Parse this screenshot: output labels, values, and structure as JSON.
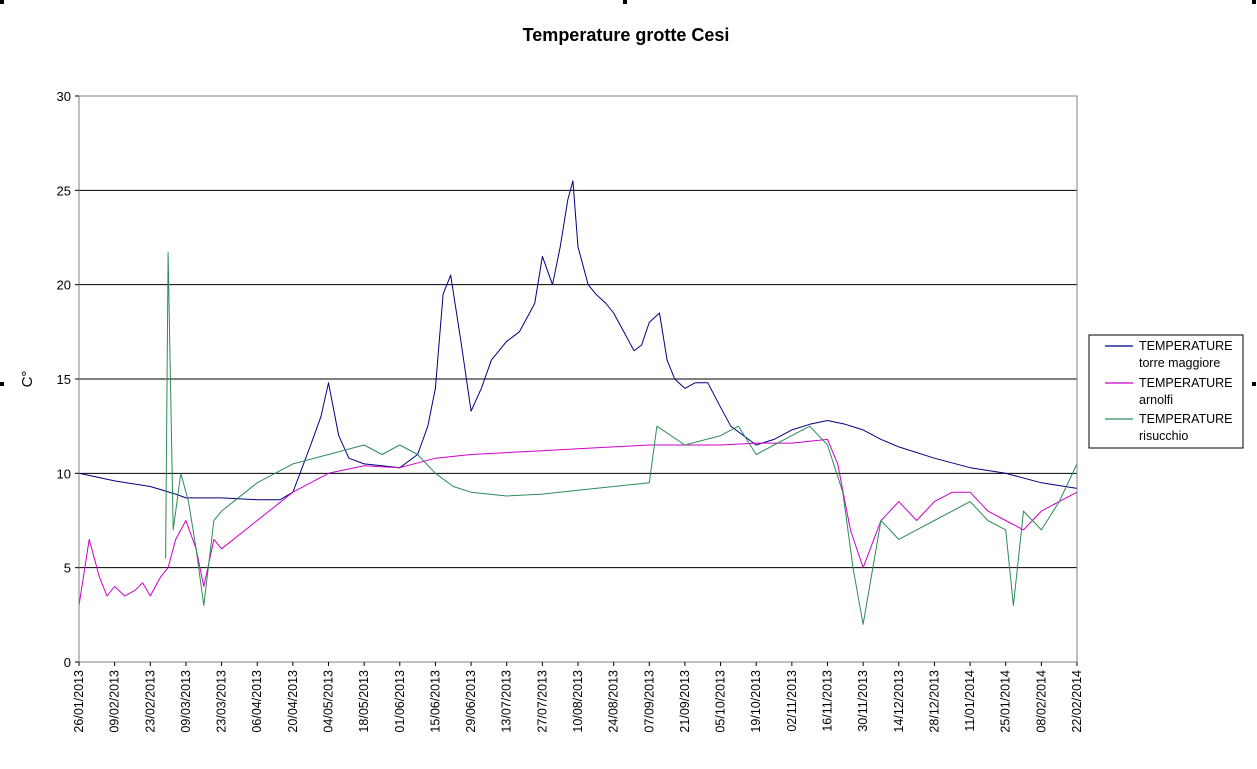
{
  "chart_data": {
    "type": "line",
    "title": "Temperature grotte Cesi",
    "xlabel": "",
    "ylabel": "C°",
    "ylim": [
      0,
      30
    ],
    "yticks": [
      0,
      5,
      10,
      15,
      20,
      25,
      30
    ],
    "xlim": [
      "2013-01-26",
      "2014-02-22"
    ],
    "xtick_labels": [
      "26/01/2013",
      "09/02/2013",
      "23/02/2013",
      "09/03/2013",
      "23/03/2013",
      "06/04/2013",
      "20/04/2013",
      "04/05/2013",
      "18/05/2013",
      "01/06/2013",
      "15/06/2013",
      "29/06/2013",
      "13/07/2013",
      "27/07/2013",
      "10/08/2013",
      "24/08/2013",
      "07/09/2013",
      "21/09/2013",
      "05/10/2013",
      "19/10/2013",
      "02/11/2013",
      "16/11/2013",
      "30/11/2013",
      "14/12/2013",
      "28/12/2013",
      "11/01/2014",
      "25/01/2014",
      "08/02/2014",
      "22/02/2014"
    ],
    "grid": "horizontal",
    "legend_position": "right",
    "series": [
      {
        "name_line1": "TEMPERATURE",
        "name_line2": "torre maggiore",
        "color": "#000080",
        "x": [
          "2013-01-26",
          "2013-02-09",
          "2013-02-23",
          "2013-03-05",
          "2013-03-09",
          "2013-03-16",
          "2013-03-23",
          "2013-04-06",
          "2013-04-15",
          "2013-04-20",
          "2013-04-27",
          "2013-05-01",
          "2013-05-04",
          "2013-05-08",
          "2013-05-12",
          "2013-05-18",
          "2013-05-25",
          "2013-06-01",
          "2013-06-08",
          "2013-06-12",
          "2013-06-15",
          "2013-06-18",
          "2013-06-21",
          "2013-06-25",
          "2013-06-29",
          "2013-07-03",
          "2013-07-07",
          "2013-07-13",
          "2013-07-18",
          "2013-07-24",
          "2013-07-27",
          "2013-07-31",
          "2013-08-03",
          "2013-08-06",
          "2013-08-08",
          "2013-08-10",
          "2013-08-14",
          "2013-08-17",
          "2013-08-21",
          "2013-08-24",
          "2013-08-28",
          "2013-09-01",
          "2013-09-04",
          "2013-09-07",
          "2013-09-11",
          "2013-09-14",
          "2013-09-17",
          "2013-09-21",
          "2013-09-25",
          "2013-09-30",
          "2013-10-05",
          "2013-10-09",
          "2013-10-14",
          "2013-10-19",
          "2013-10-26",
          "2013-11-02",
          "2013-11-09",
          "2013-11-16",
          "2013-11-23",
          "2013-11-30",
          "2013-12-07",
          "2013-12-14",
          "2013-12-28",
          "2014-01-11",
          "2014-01-25",
          "2014-02-08",
          "2014-02-22"
        ],
        "y": [
          10.0,
          9.6,
          9.3,
          8.9,
          8.7,
          8.7,
          8.7,
          8.6,
          8.6,
          9.0,
          11.5,
          13.0,
          14.8,
          12.0,
          10.8,
          10.5,
          10.4,
          10.3,
          11.0,
          12.5,
          14.5,
          19.5,
          20.5,
          17.0,
          13.3,
          14.5,
          16.0,
          17.0,
          17.5,
          19.0,
          21.5,
          20.0,
          22.0,
          24.5,
          25.5,
          22.0,
          20.0,
          19.5,
          19.0,
          18.5,
          17.5,
          16.5,
          16.8,
          18.0,
          18.5,
          16.0,
          15.0,
          14.5,
          14.8,
          14.8,
          13.5,
          12.5,
          12.0,
          11.5,
          11.8,
          12.3,
          12.6,
          12.8,
          12.6,
          12.3,
          11.8,
          11.4,
          10.8,
          10.3,
          10.0,
          9.5,
          9.2
        ]
      },
      {
        "name_line1": "TEMPERATURE",
        "name_line2": "arnolfi",
        "color": "#cc00cc",
        "x": [
          "2013-01-26",
          "2013-01-30",
          "2013-02-03",
          "2013-02-06",
          "2013-02-09",
          "2013-02-13",
          "2013-02-17",
          "2013-02-20",
          "2013-02-23",
          "2013-02-27",
          "2013-03-02",
          "2013-03-05",
          "2013-03-09",
          "2013-03-13",
          "2013-03-16",
          "2013-03-20",
          "2013-03-23",
          "2013-04-06",
          "2013-04-20",
          "2013-05-04",
          "2013-05-18",
          "2013-06-01",
          "2013-06-15",
          "2013-06-29",
          "2013-07-13",
          "2013-07-27",
          "2013-08-10",
          "2013-08-24",
          "2013-09-07",
          "2013-09-21",
          "2013-10-05",
          "2013-10-19",
          "2013-11-02",
          "2013-11-16",
          "2013-11-20",
          "2013-11-25",
          "2013-11-30",
          "2013-12-07",
          "2013-12-14",
          "2013-12-21",
          "2013-12-28",
          "2014-01-04",
          "2014-01-11",
          "2014-01-18",
          "2014-01-25",
          "2014-02-01",
          "2014-02-08",
          "2014-02-15",
          "2014-02-22"
        ],
        "y": [
          3.0,
          6.5,
          4.5,
          3.5,
          4.0,
          3.5,
          3.8,
          4.2,
          3.5,
          4.5,
          5.0,
          6.5,
          7.5,
          6.0,
          4.0,
          6.5,
          6.0,
          7.5,
          9.0,
          10.0,
          10.4,
          10.3,
          10.8,
          11.0,
          11.1,
          11.2,
          11.3,
          11.4,
          11.5,
          11.5,
          11.5,
          11.6,
          11.6,
          11.8,
          10.5,
          7.0,
          5.0,
          7.5,
          8.5,
          7.5,
          8.5,
          9.0,
          9.0,
          8.0,
          7.5,
          7.0,
          8.0,
          8.5,
          9.0
        ]
      },
      {
        "name_line1": "TEMPERATURE",
        "name_line2": "risucchio",
        "color": "#2e8b57",
        "x": [
          "2013-03-01",
          "2013-03-02",
          "2013-03-04",
          "2013-03-07",
          "2013-03-10",
          "2013-03-13",
          "2013-03-16",
          "2013-03-20",
          "2013-03-23",
          "2013-04-06",
          "2013-04-20",
          "2013-05-04",
          "2013-05-18",
          "2013-05-25",
          "2013-06-01",
          "2013-06-08",
          "2013-06-15",
          "2013-06-22",
          "2013-06-29",
          "2013-07-06",
          "2013-07-13",
          "2013-07-27",
          "2013-08-10",
          "2013-08-24",
          "2013-09-07",
          "2013-09-10",
          "2013-09-21",
          "2013-10-05",
          "2013-10-12",
          "2013-10-19",
          "2013-10-26",
          "2013-11-02",
          "2013-11-09",
          "2013-11-16",
          "2013-11-22",
          "2013-11-26",
          "2013-11-30",
          "2013-12-07",
          "2013-12-14",
          "2013-12-21",
          "2013-12-28",
          "2014-01-04",
          "2014-01-11",
          "2014-01-18",
          "2014-01-25",
          "2014-01-28",
          "2014-02-01",
          "2014-02-08",
          "2014-02-15",
          "2014-02-22"
        ],
        "y": [
          5.5,
          21.7,
          7.0,
          10.0,
          8.5,
          6.0,
          3.0,
          7.5,
          8.0,
          9.5,
          10.5,
          11.0,
          11.5,
          11.0,
          11.5,
          11.0,
          10.0,
          9.3,
          9.0,
          8.9,
          8.8,
          8.9,
          9.1,
          9.3,
          9.5,
          12.5,
          11.5,
          12.0,
          12.5,
          11.0,
          11.5,
          12.0,
          12.5,
          11.5,
          9.0,
          5.0,
          2.0,
          7.5,
          6.5,
          7.0,
          7.5,
          8.0,
          8.5,
          7.5,
          7.0,
          3.0,
          8.0,
          7.0,
          8.5,
          10.5
        ]
      }
    ]
  }
}
